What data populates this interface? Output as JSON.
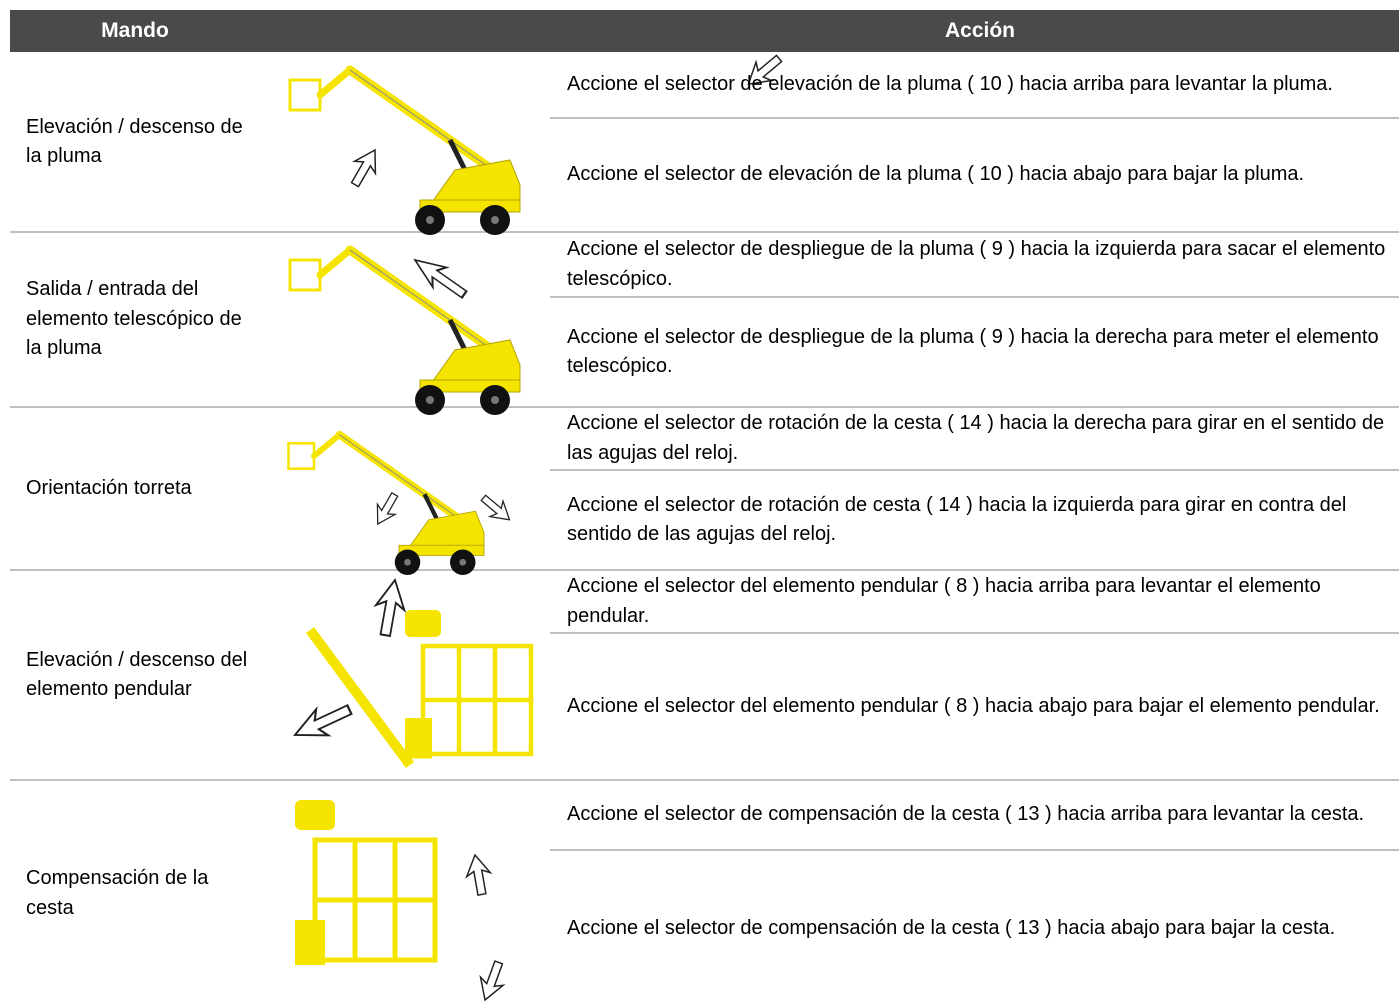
{
  "header": {
    "control": "Mando",
    "action": "Acción"
  },
  "rows": [
    {
      "control": "Elevación / descenso de la pluma",
      "actions": [
        "Accione el selector de elevación de la pluma ( 10 ) hacia arriba para levantar la pluma.",
        "Accione el selector de elevación de la pluma ( 10 ) hacia abajo para bajar la pluma."
      ]
    },
    {
      "control": "Salida / entrada del elemento telescópico de la pluma",
      "actions": [
        "Accione el selector de despliegue de la pluma ( 9 ) hacia la izquierda para sacar el elemento telescópico.",
        "Accione el selector de despliegue de la pluma ( 9 ) hacia la derecha para meter el elemento telescópico."
      ]
    },
    {
      "control": "Orientación torreta",
      "actions": [
        "Accione el selector de rotación de la cesta ( 14 ) hacia la derecha para girar en el sentido de las agujas del reloj.",
        "Accione el selector de rotación de cesta ( 14 ) hacia la izquierda para girar en contra del sentido de las agujas del reloj."
      ]
    },
    {
      "control": "Elevación / descenso del elemento pendular",
      "actions": [
        "Accione el selector del elemento pendular ( 8 ) hacia arriba para levantar el elemento pendular.",
        "Accione el selector del elemento pendular ( 8 ) hacia abajo para bajar el elemento pendular."
      ]
    },
    {
      "control": "Compensación de la cesta",
      "actions": [
        "Accione el selector de compensación de la cesta ( 13 ) hacia arriba para levantar la cesta.",
        "Accione el selector de compensación de la cesta ( 13 ) hacia abajo para bajar la cesta."
      ]
    }
  ]
}
